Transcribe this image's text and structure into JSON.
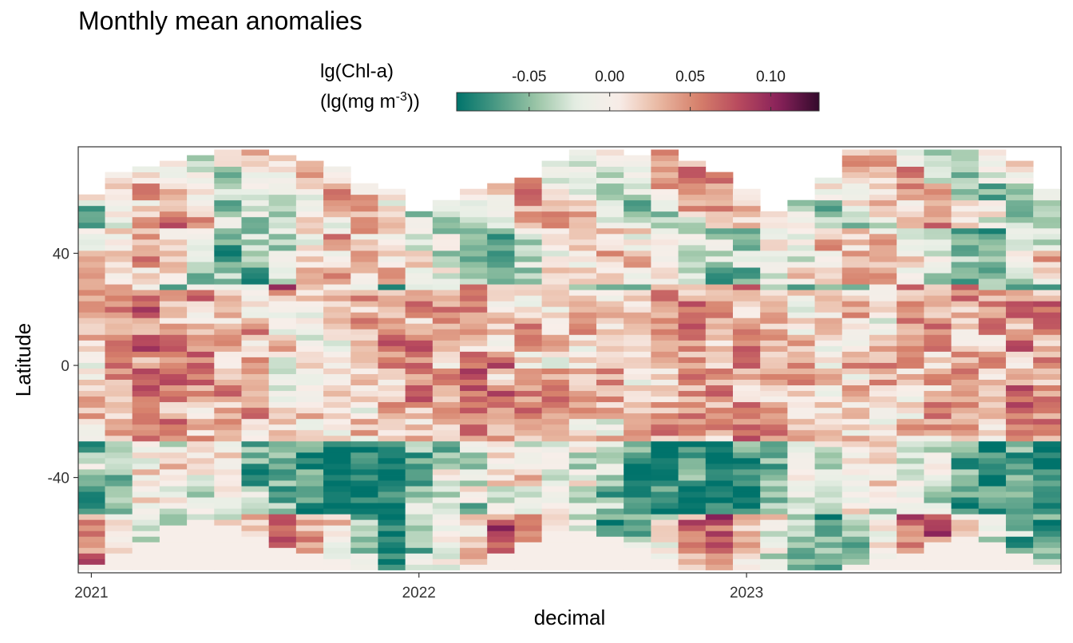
{
  "chart_data": {
    "type": "heatmap",
    "title": "Monthly mean anomalies",
    "xlabel": "decimal",
    "ylabel": "Latitude",
    "legend": {
      "title_line1": "lg(Chl-a)",
      "title_line2_base": "(lg(mg m",
      "title_line2_sup": "-3",
      "title_line2_end": "))",
      "ticks": [
        "-0.05",
        "0.00",
        "0.05",
        "0.10"
      ],
      "tick_values": [
        -0.05,
        0.0,
        0.05,
        0.1
      ],
      "range": [
        -0.095,
        0.13
      ],
      "placement": "top",
      "colors": [
        "#00736b",
        "#4c9a84",
        "#9cc6a7",
        "#e8efe6",
        "#f8eee9",
        "#e9b9a3",
        "#d6806b",
        "#b84a5e",
        "#88215a",
        "#330a2c"
      ]
    },
    "x_ticks": [
      "2021",
      "2022",
      "2023"
    ],
    "x_tick_values": [
      2021,
      2022,
      2023
    ],
    "xlim": [
      2020.96,
      2023.96
    ],
    "y_ticks": [
      "-40",
      "0",
      "40"
    ],
    "y_tick_values": [
      -40,
      0,
      40
    ],
    "ylim": [
      -74,
      78
    ],
    "months": 36,
    "start_year": 2021,
    "lat_step": 2,
    "lat_edges": [
      -73,
      77
    ],
    "northern_limit": [
      60,
      69,
      71,
      73,
      75,
      77,
      77,
      75,
      73,
      71,
      65,
      63,
      55,
      59,
      63,
      65,
      67,
      73,
      77,
      77,
      75,
      77,
      73,
      69,
      63,
      55,
      59,
      67,
      77,
      77,
      77,
      77,
      77,
      77,
      73,
      63
    ],
    "southern_limit": [
      -71,
      -69,
      -63,
      -57,
      -55,
      -57,
      -61,
      -65,
      -67,
      -71,
      -73,
      -73,
      -73,
      -73,
      -71,
      -67,
      -63,
      -59,
      -59,
      -61,
      -65,
      -69,
      -73,
      -73,
      -73,
      -73,
      -73,
      -73,
      -71,
      -69,
      -67,
      -63,
      -61,
      -63,
      -67,
      -71
    ],
    "grid": false
  }
}
